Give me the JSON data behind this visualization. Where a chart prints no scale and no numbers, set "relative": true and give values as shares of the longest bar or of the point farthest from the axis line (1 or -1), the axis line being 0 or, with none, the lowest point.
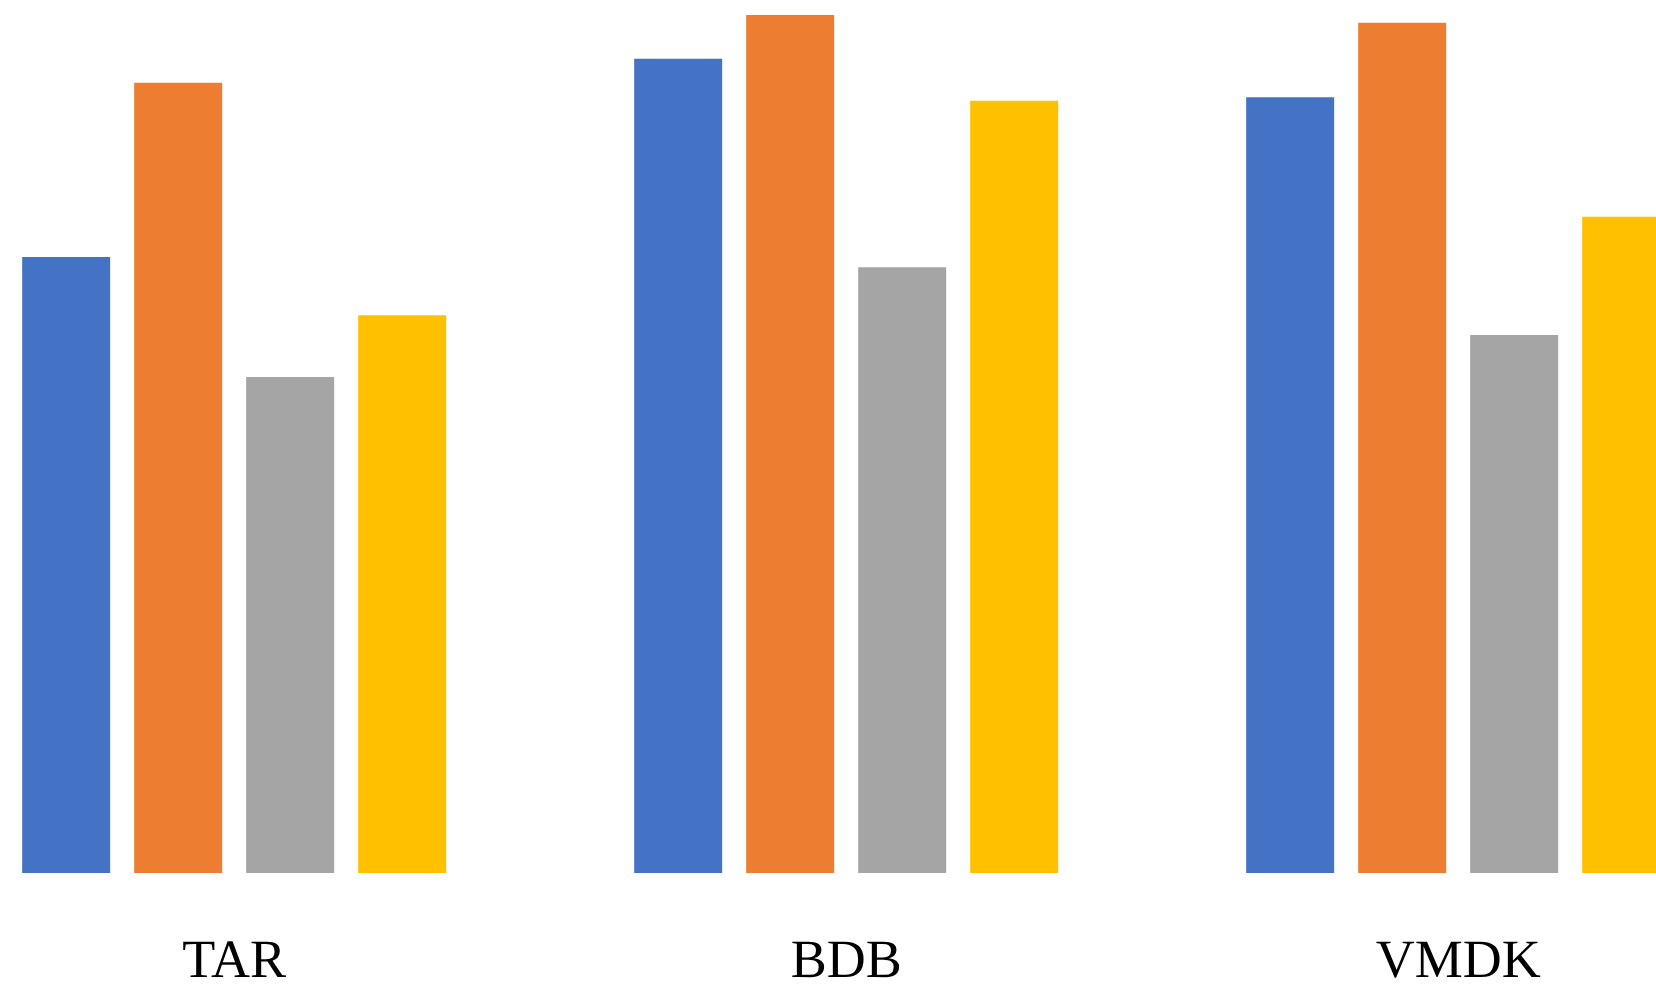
{
  "chart_data": {
    "type": "bar",
    "relative": true,
    "categories": [
      "TAR",
      "BDB",
      "VMDK"
    ],
    "series": [
      {
        "color": "#4472c4",
        "values": [
          0.718,
          0.949,
          0.904
        ]
      },
      {
        "color": "#ed7d31",
        "values": [
          0.921,
          1.0,
          0.991
        ]
      },
      {
        "color": "#a5a5a5",
        "values": [
          0.578,
          0.706,
          0.627
        ]
      },
      {
        "color": "#ffc000",
        "values": [
          0.65,
          0.9,
          0.765
        ]
      }
    ]
  }
}
